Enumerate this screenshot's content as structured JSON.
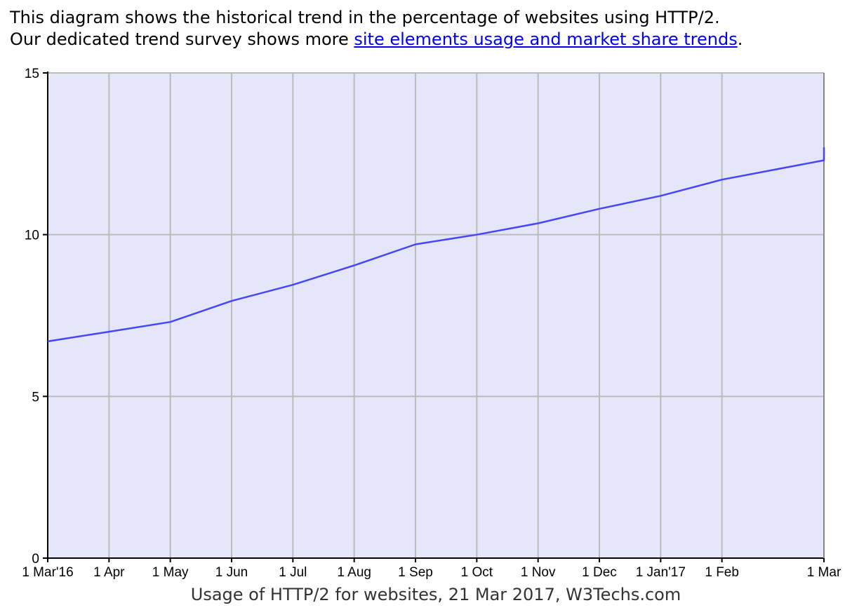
{
  "intro": {
    "line1": "This diagram shows the historical trend in the percentage of websites using HTTP/2.",
    "line2_prefix": "Our dedicated trend survey shows more ",
    "link_text": "site elements usage and market share trends",
    "line2_suffix": "."
  },
  "colors": {
    "plot_background": "#e6e6fa",
    "series_line": "#4646ff",
    "grid": "#bbbbbb",
    "link": "#0000ee"
  },
  "chart_data": {
    "type": "line",
    "title": "",
    "caption": "Usage of HTTP/2 for websites, 21 Mar 2017, W3Techs.com",
    "xlabel": "",
    "ylabel": "",
    "ylim": [
      0,
      15
    ],
    "y_ticks": [
      "0",
      "5",
      "10",
      "15"
    ],
    "grid": true,
    "legend": "none",
    "categories": [
      "1 Mar'16",
      "1 Apr",
      "1 May",
      "1 Jun",
      "1 Jul",
      "1 Aug",
      "1 Sep",
      "1 Oct",
      "1 Nov",
      "1 Dec",
      "1 Jan'17",
      "1 Feb",
      "1 Mar",
      "21 Mar 2017"
    ],
    "x_tick_labels": [
      "1 Mar'16",
      "1 Apr",
      "1 May",
      "1 Jun",
      "1 Jul",
      "1 Aug",
      "1 Sep",
      "1 Oct",
      "1 Nov",
      "1 Dec",
      "1 Jan'17",
      "1 Feb",
      "1 Mar"
    ],
    "series": [
      {
        "values": [
          6.7,
          7.0,
          7.3,
          7.95,
          8.45,
          9.05,
          9.7,
          10.0,
          10.35,
          10.8,
          11.2,
          11.7,
          12.3,
          12.7
        ]
      }
    ]
  }
}
